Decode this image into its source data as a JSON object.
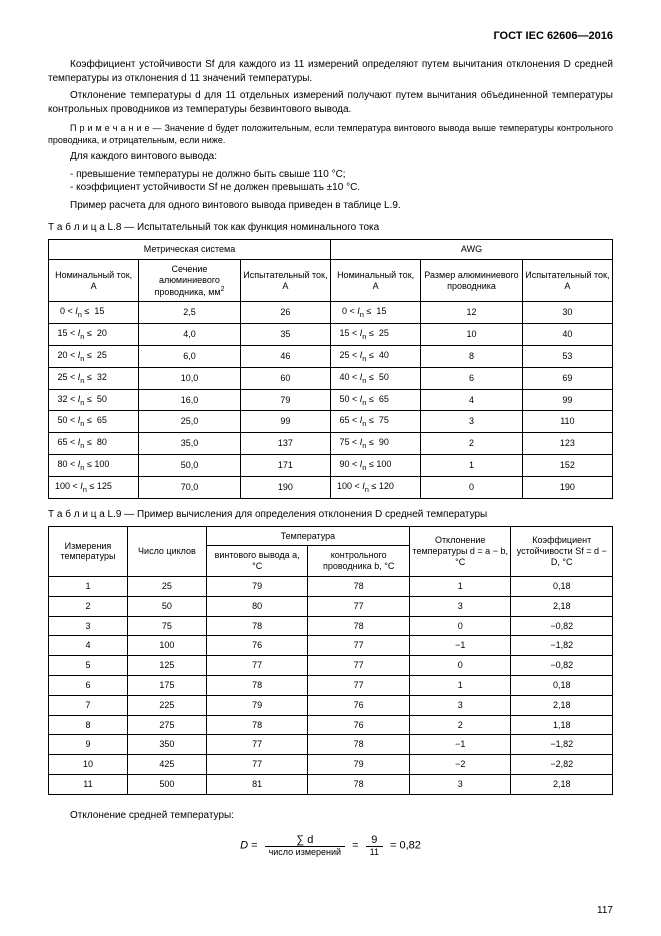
{
  "header": {
    "doc_id": "ГОСТ IEC 62606—2016"
  },
  "paragraphs": {
    "p1": "Коэффициент устойчивости Sf для каждого из 11 измерений определяют путем вычитания отклонения D средней температуры из отклонения d 11 значений температуры.",
    "p2": "Отклонение температуры d для 11 отдельных измерений получают путем вычитания объединенной температуры контрольных проводников из температуры безвинтового вывода.",
    "note_label": "П р и м е ч а н и е",
    "note": "— Значение d будет положительным, если температура винтового вывода выше температуры контрольного проводника, и отрицательным, если ниже.",
    "p3": "Для каждого винтового вывода:",
    "li1": "превышение температуры не должно быть свыше 110 °C;",
    "li2": "коэффициент устойчивости Sf не должен превышать ±10 °C.",
    "p4": "Пример расчета для одного винтового вывода приведен в таблице L.9.",
    "deviation_label": "Отклонение средней температуры:"
  },
  "tableL8": {
    "caption_label": "Т а б л и ц а  L.8",
    "caption_text": "— Испытательный ток как функция номинального тока",
    "group1": "Метрическая система",
    "group2": "AWG",
    "h_nom": "Номинальный ток, А",
    "h_sec": "Сечение алюминиевого проводника, мм",
    "h_test": "Испытательный ток, А",
    "h_size": "Размер алюминиевого проводника",
    "rows": [
      {
        "r1": "0",
        "op": " < Iₙ ≤ ",
        "r2": "15",
        "sec": "2,5",
        "t1": "26",
        "r3": "0",
        "r4": "15",
        "size": "12",
        "t2": "30"
      },
      {
        "r1": "15",
        "op": " < Iₙ ≤ ",
        "r2": "20",
        "sec": "4,0",
        "t1": "35",
        "r3": "15",
        "r4": "25",
        "size": "10",
        "t2": "40"
      },
      {
        "r1": "20",
        "op": " < Iₙ ≤ ",
        "r2": "25",
        "sec": "6,0",
        "t1": "46",
        "r3": "25",
        "r4": "40",
        "size": "8",
        "t2": "53"
      },
      {
        "r1": "25",
        "op": " < Iₙ ≤ ",
        "r2": "32",
        "sec": "10,0",
        "t1": "60",
        "r3": "40",
        "r4": "50",
        "size": "6",
        "t2": "69"
      },
      {
        "r1": "32",
        "op": " < Iₙ ≤ ",
        "r2": "50",
        "sec": "16,0",
        "t1": "79",
        "r3": "50",
        "r4": "65",
        "size": "4",
        "t2": "99"
      },
      {
        "r1": "50",
        "op": " < Iₙ ≤ ",
        "r2": "65",
        "sec": "25,0",
        "t1": "99",
        "r3": "65",
        "r4": "75",
        "size": "3",
        "t2": "110"
      },
      {
        "r1": "65",
        "op": " < Iₙ ≤ ",
        "r2": "80",
        "sec": "35,0",
        "t1": "137",
        "r3": "75",
        "r4": "90",
        "size": "2",
        "t2": "123"
      },
      {
        "r1": "80",
        "op": " < Iₙ ≤ ",
        "r2": "100",
        "sec": "50,0",
        "t1": "171",
        "r3": "90",
        "r4": "100",
        "size": "1",
        "t2": "152"
      },
      {
        "r1": "100",
        "op": " < Iₙ ≤ ",
        "r2": "125",
        "sec": "70,0",
        "t1": "190",
        "r3": "100",
        "r4": "120",
        "size": "0",
        "t2": "190"
      }
    ]
  },
  "tableL9": {
    "caption_label": "Т а б л и ц а  L.9",
    "caption_text": "— Пример вычисления для определения отклонения D средней температуры",
    "h_meas": "Измерения температуры",
    "h_cycles": "Число циклов",
    "h_temp_group": "Температура",
    "h_a": "винтового вывода a, °C",
    "h_b": "контрольного проводника b, °C",
    "h_dev": "Отклонение температуры d = a − b, °C",
    "h_sf": "Коэффициент устойчивости Sf = d − D, °C",
    "rows": [
      {
        "n": "1",
        "c": "25",
        "a": "79",
        "b": "78",
        "d": "1",
        "sf": "0,18"
      },
      {
        "n": "2",
        "c": "50",
        "a": "80",
        "b": "77",
        "d": "3",
        "sf": "2,18"
      },
      {
        "n": "3",
        "c": "75",
        "a": "78",
        "b": "78",
        "d": "0",
        "sf": "−0,82"
      },
      {
        "n": "4",
        "c": "100",
        "a": "76",
        "b": "77",
        "d": "−1",
        "sf": "−1,82"
      },
      {
        "n": "5",
        "c": "125",
        "a": "77",
        "b": "77",
        "d": "0",
        "sf": "−0,82"
      },
      {
        "n": "6",
        "c": "175",
        "a": "78",
        "b": "77",
        "d": "1",
        "sf": "0,18"
      },
      {
        "n": "7",
        "c": "225",
        "a": "79",
        "b": "76",
        "d": "3",
        "sf": "2,18"
      },
      {
        "n": "8",
        "c": "275",
        "a": "78",
        "b": "76",
        "d": "2",
        "sf": "1,18"
      },
      {
        "n": "9",
        "c": "350",
        "a": "77",
        "b": "78",
        "d": "−1",
        "sf": "−1,82"
      },
      {
        "n": "10",
        "c": "425",
        "a": "77",
        "b": "79",
        "d": "−2",
        "sf": "−2,82"
      },
      {
        "n": "11",
        "c": "500",
        "a": "81",
        "b": "78",
        "d": "3",
        "sf": "2,18"
      }
    ]
  },
  "formula": {
    "D": "D",
    "eq": " = ",
    "sum": "∑ d",
    "den1": "число измерений",
    "num2": "9",
    "den2": "11",
    "result": " = 0,82"
  },
  "page_number": "117"
}
